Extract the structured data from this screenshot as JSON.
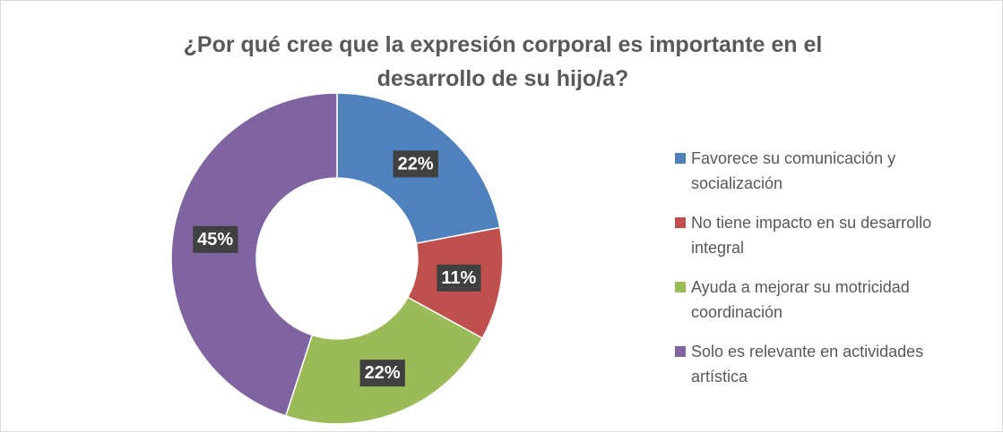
{
  "chart_data": {
    "type": "donut",
    "title": "¿Por qué cree que la expresión corporal es importante en el desarrollo de su hijo/a?",
    "categories": [
      "Favorece su comunicación y socialización",
      "No tiene impacto en su desarrollo integral",
      "Ayuda a mejorar su motricidad coordinación",
      "Solo es relevante en actividades artística"
    ],
    "values": [
      22,
      11,
      22,
      45
    ],
    "value_labels": [
      "22%",
      "11%",
      "22%",
      "45%"
    ],
    "colors": [
      "#4f81bd",
      "#c0504d",
      "#9bbb59",
      "#8064a2"
    ],
    "legend": "right"
  }
}
